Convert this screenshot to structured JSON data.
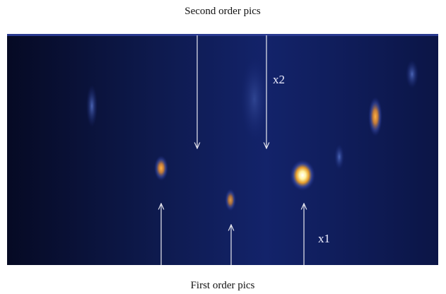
{
  "header": {
    "title": "Second order pics"
  },
  "annotations": {
    "top_marker": "x2",
    "bottom_marker": "x1"
  },
  "footer": {
    "title": "First order pics"
  }
}
